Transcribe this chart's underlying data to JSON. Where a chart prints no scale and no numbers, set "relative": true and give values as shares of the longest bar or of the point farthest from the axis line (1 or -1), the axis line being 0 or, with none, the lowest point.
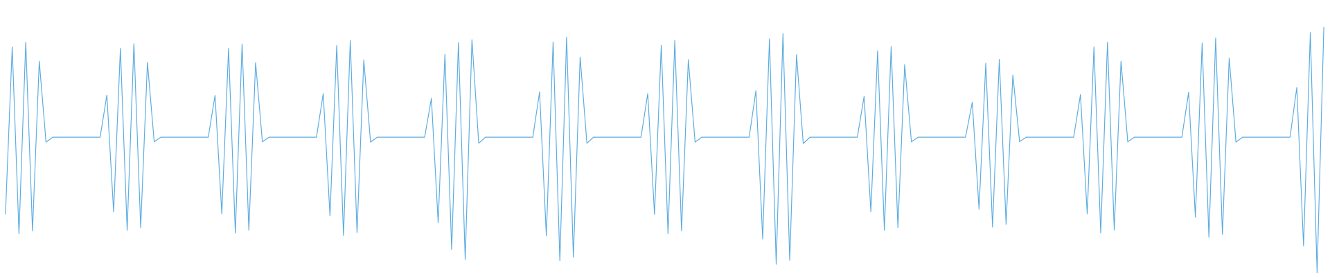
{
  "chart_data": {
    "type": "line",
    "relative": true,
    "color": "#5dade2",
    "marker": "none",
    "line_style": "solid",
    "categories": [
      null,
      null,
      null,
      null,
      null,
      null,
      null,
      null,
      null,
      null,
      null,
      null,
      null,
      null,
      null,
      null,
      null,
      null,
      null,
      null,
      null,
      null,
      null,
      null,
      null,
      null,
      null,
      null,
      null,
      null,
      null,
      null,
      null,
      null,
      null,
      null,
      null,
      null,
      null,
      null,
      null,
      null,
      null,
      null,
      null,
      null,
      null,
      null,
      null,
      null,
      null,
      null,
      null,
      null,
      null,
      null,
      null,
      null,
      null,
      null,
      null,
      null,
      null,
      null,
      null,
      null,
      null,
      null,
      null,
      null,
      null,
      null,
      null,
      null,
      null,
      null,
      null,
      null,
      null,
      null,
      null,
      null,
      null,
      null,
      null,
      null,
      null,
      null,
      null,
      null,
      null,
      null,
      null,
      null,
      null,
      null,
      null,
      null,
      null,
      null,
      null,
      null,
      null,
      null,
      null,
      null,
      null,
      null,
      null,
      null,
      null,
      null,
      null,
      null,
      null,
      null,
      null,
      null,
      null,
      null,
      null,
      null,
      null,
      null,
      null,
      null,
      null,
      null,
      null,
      null,
      null,
      null,
      null,
      null,
      null,
      null,
      null,
      null,
      null,
      null,
      null,
      null,
      null,
      null,
      null,
      null,
      null,
      null,
      null,
      null,
      null,
      null,
      null,
      null,
      null,
      null,
      null,
      null,
      null,
      null,
      null,
      null,
      null,
      null,
      null,
      null,
      null,
      null,
      null,
      null,
      null,
      null,
      null,
      null,
      null,
      null,
      null,
      null,
      null,
      null,
      null,
      null,
      null,
      null,
      null,
      null,
      null,
      null,
      null,
      null,
      null,
      null,
      null,
      null,
      null,
      null
    ],
    "values": [
      0.238,
      0.919,
      0.159,
      0.938,
      0.171,
      0.861,
      0.532,
      0.552,
      0.552,
      0.552,
      0.552,
      0.552,
      0.552,
      0.552,
      0.552,
      0.723,
      0.249,
      0.913,
      0.173,
      0.932,
      0.184,
      0.856,
      0.533,
      0.552,
      0.552,
      0.552,
      0.552,
      0.552,
      0.552,
      0.552,
      0.552,
      0.722,
      0.24,
      0.913,
      0.162,
      0.931,
      0.174,
      0.855,
      0.533,
      0.552,
      0.552,
      0.552,
      0.552,
      0.552,
      0.552,
      0.552,
      0.552,
      0.729,
      0.232,
      0.925,
      0.152,
      0.945,
      0.164,
      0.866,
      0.532,
      0.552,
      0.552,
      0.552,
      0.552,
      0.552,
      0.552,
      0.552,
      0.552,
      0.71,
      0.204,
      0.889,
      0.095,
      0.936,
      0.055,
      0.948,
      0.527,
      0.552,
      0.552,
      0.552,
      0.552,
      0.552,
      0.552,
      0.552,
      0.552,
      0.736,
      0.15,
      0.939,
      0.049,
      0.959,
      0.064,
      0.878,
      0.527,
      0.552,
      0.552,
      0.552,
      0.552,
      0.552,
      0.552,
      0.552,
      0.552,
      0.729,
      0.238,
      0.926,
      0.159,
      0.945,
      0.171,
      0.867,
      0.532,
      0.552,
      0.552,
      0.552,
      0.552,
      0.552,
      0.552,
      0.552,
      0.552,
      0.741,
      0.138,
      0.952,
      0.035,
      0.973,
      0.051,
      0.888,
      0.526,
      0.552,
      0.552,
      0.552,
      0.552,
      0.552,
      0.552,
      0.552,
      0.552,
      0.718,
      0.249,
      0.903,
      0.173,
      0.921,
      0.184,
      0.847,
      0.533,
      0.552,
      0.552,
      0.552,
      0.552,
      0.552,
      0.552,
      0.552,
      0.552,
      0.694,
      0.259,
      0.853,
      0.186,
      0.869,
      0.197,
      0.805,
      0.534,
      0.552,
      0.552,
      0.552,
      0.552,
      0.552,
      0.552,
      0.552,
      0.552,
      0.725,
      0.24,
      0.919,
      0.162,
      0.938,
      0.174,
      0.861,
      0.533,
      0.552,
      0.552,
      0.552,
      0.552,
      0.552,
      0.552,
      0.552,
      0.552,
      0.734,
      0.226,
      0.935,
      0.145,
      0.955,
      0.157,
      0.874,
      0.532,
      0.552,
      0.552,
      0.552,
      0.552,
      0.552,
      0.552,
      0.552,
      0.552,
      0.754,
      0.11,
      0.978,
      0.0,
      1.0
    ]
  }
}
